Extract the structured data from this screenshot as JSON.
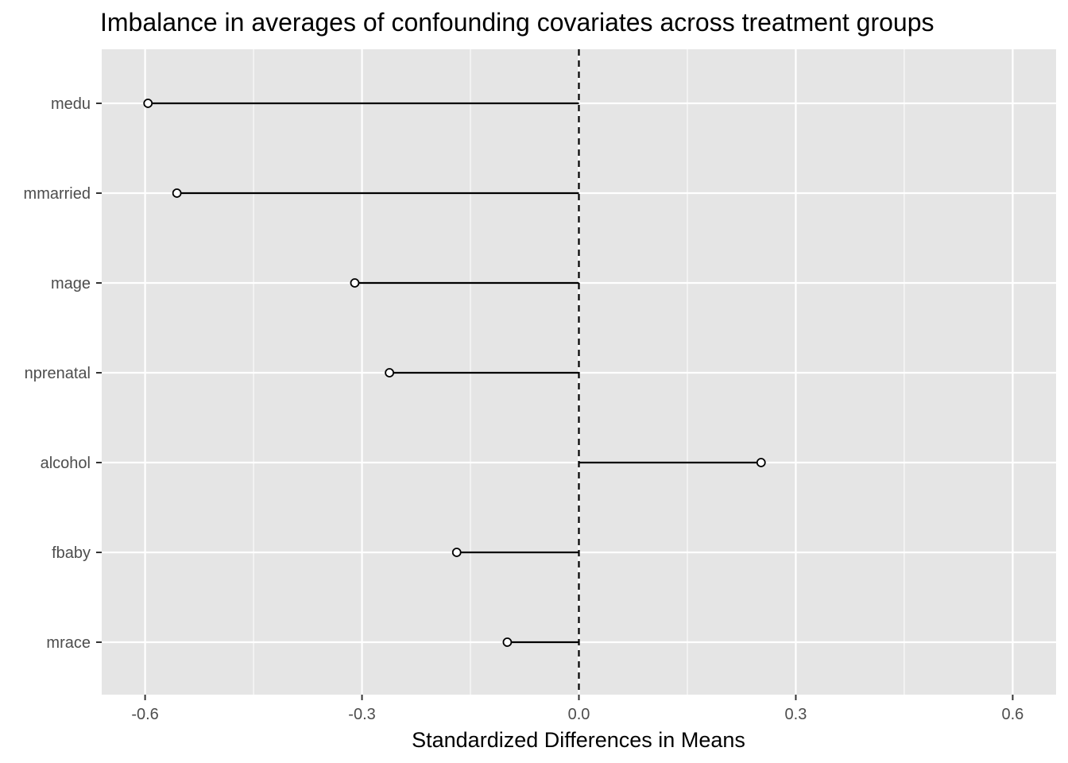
{
  "chart_data": {
    "type": "lollipop",
    "title": "Imbalance in averages of confounding covariates across treatment groups",
    "xlabel": "Standardized Differences in Means",
    "ylabel": "",
    "xlim": [
      -0.66,
      0.66
    ],
    "x_ticks": [
      "-0.6",
      "-0.3",
      "0.0",
      "0.3",
      "0.6"
    ],
    "x_tick_values": [
      -0.6,
      -0.3,
      0.0,
      0.3,
      0.6
    ],
    "x_minor_breaks": [
      -0.45,
      -0.15,
      0.15,
      0.45
    ],
    "reference_line": 0.0,
    "categories": [
      "medu",
      "mmarried",
      "mage",
      "nprenatal",
      "alcohol",
      "fbaby",
      "mrace"
    ],
    "values": [
      -0.596,
      -0.556,
      -0.31,
      -0.262,
      0.252,
      -0.169,
      -0.099
    ],
    "grid": true,
    "legend": "none"
  },
  "colors": {
    "panel_background": "#e5e5e5",
    "grid_line": "#ffffff",
    "segment": "#000000",
    "point_fill": "#ffffff",
    "point_stroke": "#000000",
    "reference_line": "#000000",
    "tick_label": "#4d4d4d"
  }
}
